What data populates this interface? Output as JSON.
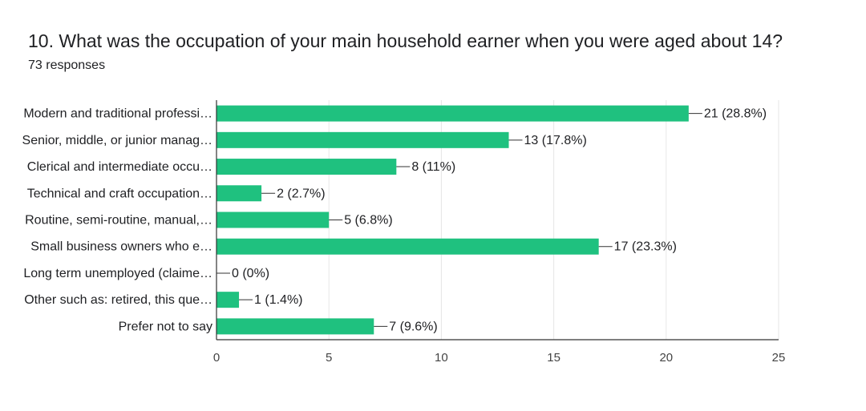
{
  "question": {
    "title": "10. What was the occupation of your main household earner when you were aged about 14?",
    "responses": "73 responses"
  },
  "chart_data": {
    "type": "bar",
    "orientation": "horizontal",
    "categories": [
      "Modern and traditional professi…",
      "Senior, middle, or junior manag…",
      "Clerical and intermediate occu…",
      "Technical and craft occupation…",
      "Routine, semi-routine, manual,…",
      "Small business owners who e…",
      "Long term unemployed (claime…",
      "Other such as: retired, this que…",
      "Prefer not to say"
    ],
    "values": [
      21,
      13,
      8,
      2,
      5,
      17,
      0,
      1,
      7
    ],
    "value_labels": [
      "21 (28.8%)",
      "13 (17.8%)",
      "8 (11%)",
      "2 (2.7%)",
      "5 (6.8%)",
      "17 (23.3%)",
      "0 (0%)",
      "1 (1.4%)",
      "7 (9.6%)"
    ],
    "xlim": [
      0,
      25
    ],
    "xticks": [
      0,
      5,
      10,
      15,
      20,
      25
    ],
    "grid": true,
    "bar_color": "#1fc17f",
    "grid_color": "#e6e6e6",
    "axis_color": "#333333"
  }
}
